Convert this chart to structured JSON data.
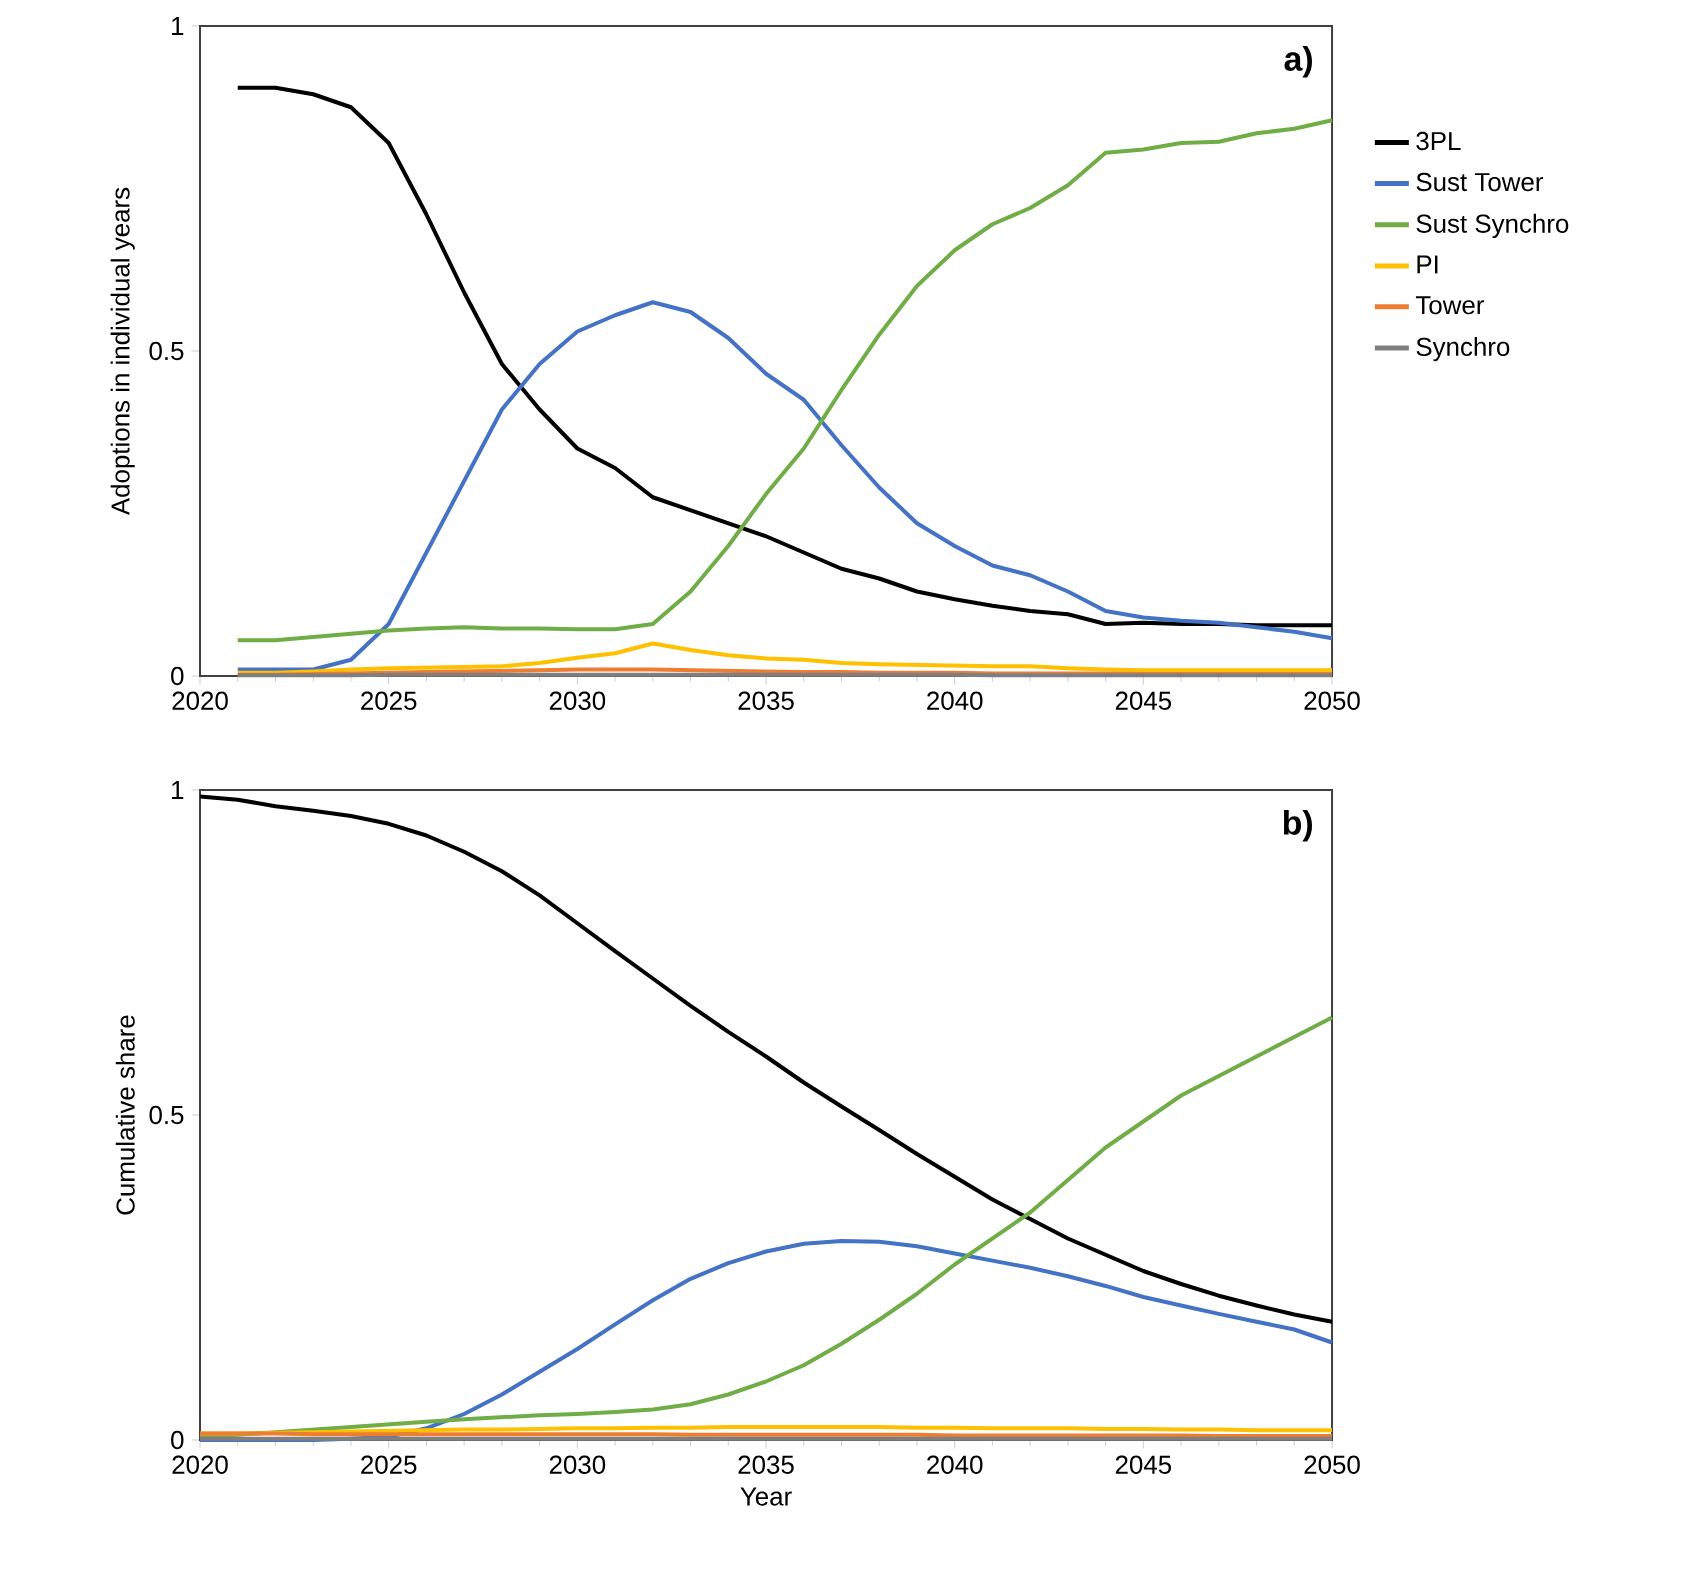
{
  "chart_data": [
    {
      "type": "line",
      "ylabel": "Adoptions in individual years",
      "annotations": [
        "a)"
      ],
      "legend": "right",
      "grid": false,
      "line_style": "solid",
      "marker": "none",
      "xlim": [
        2020,
        2050
      ],
      "ylim": [
        0,
        1
      ],
      "xticks": [
        2020,
        2025,
        2030,
        2035,
        2040,
        2045,
        2050
      ],
      "yticks": [
        0,
        0.5,
        1
      ],
      "x": [
        2021,
        2022,
        2023,
        2024,
        2025,
        2026,
        2027,
        2028,
        2029,
        2030,
        2031,
        2032,
        2033,
        2034,
        2035,
        2036,
        2037,
        2038,
        2039,
        2040,
        2041,
        2042,
        2043,
        2044,
        2045,
        2046,
        2047,
        2048,
        2049,
        2050
      ],
      "series": [
        {
          "name": "3PL",
          "color": "#000000",
          "values": [
            0.905,
            0.905,
            0.895,
            0.875,
            0.82,
            0.71,
            0.59,
            0.48,
            0.41,
            0.35,
            0.32,
            0.275,
            0.255,
            0.235,
            0.215,
            0.19,
            0.165,
            0.15,
            0.13,
            0.118,
            0.108,
            0.1,
            0.095,
            0.08,
            0.082,
            0.08,
            0.08,
            0.078,
            0.078,
            0.078
          ]
        },
        {
          "name": "Sust Tower",
          "color": "#4472c4",
          "values": [
            0.01,
            0.01,
            0.01,
            0.025,
            0.08,
            0.19,
            0.3,
            0.41,
            0.48,
            0.53,
            0.555,
            0.575,
            0.56,
            0.52,
            0.465,
            0.425,
            0.355,
            0.29,
            0.235,
            0.2,
            0.17,
            0.155,
            0.13,
            0.1,
            0.09,
            0.085,
            0.082,
            0.075,
            0.068,
            0.058
          ]
        },
        {
          "name": "Sust Synchro",
          "color": "#70ad47",
          "values": [
            0.055,
            0.055,
            0.06,
            0.065,
            0.07,
            0.073,
            0.075,
            0.073,
            0.073,
            0.072,
            0.072,
            0.08,
            0.13,
            0.2,
            0.28,
            0.35,
            0.44,
            0.525,
            0.6,
            0.655,
            0.695,
            0.72,
            0.755,
            0.805,
            0.81,
            0.82,
            0.822,
            0.835,
            0.842,
            0.855
          ]
        },
        {
          "name": "PI",
          "color": "#ffc000",
          "values": [
            0.005,
            0.005,
            0.007,
            0.01,
            0.012,
            0.013,
            0.014,
            0.015,
            0.02,
            0.028,
            0.035,
            0.05,
            0.04,
            0.032,
            0.027,
            0.025,
            0.02,
            0.018,
            0.017,
            0.016,
            0.015,
            0.015,
            0.012,
            0.01,
            0.009,
            0.009,
            0.009,
            0.009,
            0.009,
            0.009
          ]
        },
        {
          "name": "Tower",
          "color": "#ed7d31",
          "values": [
            0.002,
            0.002,
            0.003,
            0.004,
            0.005,
            0.006,
            0.007,
            0.008,
            0.009,
            0.01,
            0.01,
            0.01,
            0.009,
            0.008,
            0.007,
            0.006,
            0.006,
            0.005,
            0.005,
            0.005,
            0.004,
            0.004,
            0.004,
            0.004,
            0.003,
            0.003,
            0.003,
            0.003,
            0.003,
            0.003
          ]
        },
        {
          "name": "Synchro",
          "color": "#7f7f7f",
          "values": [
            0.001,
            0.001,
            0.001,
            0.001,
            0.002,
            0.002,
            0.002,
            0.002,
            0.002,
            0.002,
            0.002,
            0.002,
            0.002,
            0.002,
            0.002,
            0.002,
            0.002,
            0.002,
            0.002,
            0.002,
            0.001,
            0.001,
            0.001,
            0.001,
            0.001,
            0.001,
            0.001,
            0.001,
            0.001,
            0.001
          ]
        }
      ]
    },
    {
      "type": "line",
      "xlabel": "Year",
      "ylabel": "Cumulative share",
      "annotations": [
        "b)"
      ],
      "grid": false,
      "line_style": "solid",
      "marker": "none",
      "xlim": [
        2020,
        2050
      ],
      "ylim": [
        0,
        1
      ],
      "xticks": [
        2020,
        2025,
        2030,
        2035,
        2040,
        2045,
        2050
      ],
      "yticks": [
        0,
        0.5,
        1
      ],
      "x": [
        2020,
        2021,
        2022,
        2023,
        2024,
        2025,
        2026,
        2027,
        2028,
        2029,
        2030,
        2031,
        2032,
        2033,
        2034,
        2035,
        2036,
        2037,
        2038,
        2039,
        2040,
        2041,
        2042,
        2043,
        2044,
        2045,
        2046,
        2047,
        2048,
        2049,
        2050
      ],
      "series": [
        {
          "color": "#000000",
          "values": [
            0.99,
            0.985,
            0.975,
            0.968,
            0.96,
            0.948,
            0.93,
            0.905,
            0.875,
            0.838,
            0.795,
            0.752,
            0.71,
            0.668,
            0.628,
            0.59,
            0.55,
            0.513,
            0.477,
            0.44,
            0.405,
            0.37,
            0.34,
            0.31,
            0.285,
            0.26,
            0.24,
            0.222,
            0.207,
            0.193,
            0.182
          ]
        },
        {
          "color": "#4472c4",
          "values": [
            0,
            0,
            0,
            0,
            0.002,
            0.005,
            0.018,
            0.04,
            0.07,
            0.105,
            0.14,
            0.178,
            0.215,
            0.248,
            0.272,
            0.29,
            0.302,
            0.306,
            0.305,
            0.298,
            0.287,
            0.276,
            0.265,
            0.252,
            0.237,
            0.22,
            0.207,
            0.194,
            0.182,
            0.17,
            0.15
          ]
        },
        {
          "color": "#70ad47",
          "values": [
            0.005,
            0.008,
            0.012,
            0.016,
            0.02,
            0.024,
            0.028,
            0.032,
            0.035,
            0.038,
            0.04,
            0.043,
            0.047,
            0.055,
            0.07,
            0.09,
            0.115,
            0.148,
            0.185,
            0.225,
            0.27,
            0.31,
            0.35,
            0.4,
            0.45,
            0.49,
            0.53,
            0.56,
            0.59,
            0.62,
            0.65
          ]
        },
        {
          "color": "#ffc000",
          "values": [
            0.01,
            0.01,
            0.011,
            0.012,
            0.013,
            0.014,
            0.015,
            0.016,
            0.016,
            0.017,
            0.018,
            0.018,
            0.019,
            0.019,
            0.02,
            0.02,
            0.02,
            0.02,
            0.02,
            0.019,
            0.019,
            0.018,
            0.018,
            0.018,
            0.017,
            0.017,
            0.016,
            0.016,
            0.015,
            0.015,
            0.015
          ]
        },
        {
          "color": "#ed7d31",
          "values": [
            0.01,
            0.01,
            0.01,
            0.009,
            0.009,
            0.009,
            0.009,
            0.009,
            0.009,
            0.009,
            0.009,
            0.009,
            0.009,
            0.008,
            0.008,
            0.008,
            0.008,
            0.008,
            0.008,
            0.008,
            0.007,
            0.007,
            0.007,
            0.007,
            0.007,
            0.007,
            0.007,
            0.006,
            0.006,
            0.006,
            0.006
          ]
        },
        {
          "color": "#7f7f7f",
          "values": [
            0.002,
            0.002,
            0.002,
            0.002,
            0.002,
            0.002,
            0.002,
            0.002,
            0.002,
            0.002,
            0.002,
            0.002,
            0.002,
            0.002,
            0.002,
            0.002,
            0.002,
            0.002,
            0.002,
            0.002,
            0.002,
            0.002,
            0.002,
            0.002,
            0.002,
            0.002,
            0.002,
            0.002,
            0.002,
            0.002,
            0.002
          ]
        }
      ]
    }
  ]
}
